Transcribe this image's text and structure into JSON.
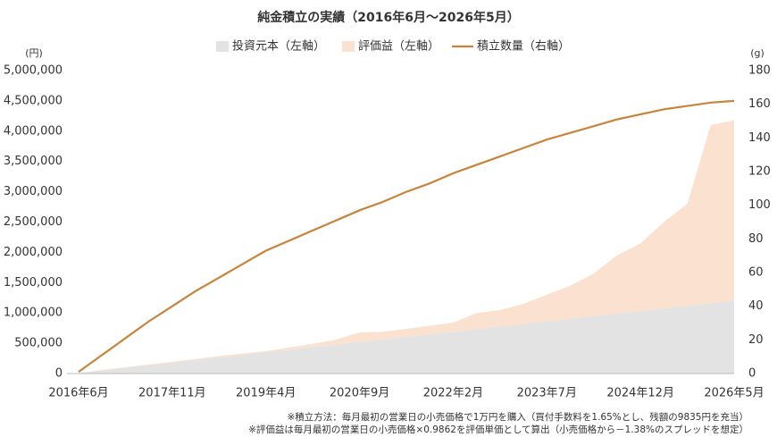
{
  "chart_data": {
    "type": "stacked_area_line",
    "title": "純金積立の実績（2016年6月～2026年5月）",
    "y_unit_label": "(円)",
    "y2_unit_label": "(g)",
    "categories": [
      "2016年6月",
      null,
      null,
      null,
      "2017年11月",
      null,
      null,
      null,
      "2019年4月",
      null,
      null,
      null,
      "2020年9月",
      null,
      null,
      null,
      "2022年2月",
      null,
      null,
      null,
      "2023年7月",
      null,
      null,
      null,
      "2024年12月",
      null,
      null,
      null,
      "2026年5月"
    ],
    "series": [
      {
        "name": "投資元本（左軸）",
        "type": "area",
        "color": "#e3e3e3",
        "values": [
          10000,
          52500,
          95000,
          137500,
          180000,
          222500,
          265000,
          307500,
          350000,
          392500,
          435000,
          477500,
          520000,
          562500,
          605000,
          647500,
          690000,
          732500,
          775000,
          817500,
          860000,
          902500,
          945000,
          987500,
          1030000,
          1072500,
          1115000,
          1157500,
          1200000
        ]
      },
      {
        "name": "評価益（左軸）",
        "type": "area",
        "color": "#fbe1cf",
        "values": [
          0,
          7500,
          10000,
          12500,
          15000,
          17500,
          25000,
          22500,
          20000,
          37500,
          55000,
          82500,
          160000,
          127500,
          135000,
          142500,
          150000,
          267500,
          272500,
          332500,
          440000,
          547500,
          705000,
          962500,
          1120000,
          1427500,
          1685000,
          2942500,
          2980000
        ]
      },
      {
        "name": "積立数量（右軸）",
        "type": "line",
        "axis": "y2",
        "color": "#c8843a",
        "values": [
          1,
          11,
          21,
          31,
          40,
          49,
          57,
          65,
          73,
          79,
          85,
          91,
          97,
          102,
          108,
          113,
          119,
          124,
          129,
          134,
          139,
          143,
          147,
          151,
          154,
          157,
          159,
          161,
          162
        ]
      }
    ],
    "ylim": [
      0,
      5000000
    ],
    "yticks": [
      0,
      {
        "value": 500000,
        "label": "500,000"
      },
      {
        "value": 1000000,
        "label": "1,000,000"
      },
      {
        "value": 1500000,
        "label": "1,500,000"
      },
      {
        "value": 2000000,
        "label": "2,000,000"
      },
      {
        "value": 2500000,
        "label": "2,500,000"
      },
      {
        "value": 3000000,
        "label": "3,000,000"
      },
      {
        "value": 3500000,
        "label": "3,500,000"
      },
      {
        "value": 4000000,
        "label": "4,000,000"
      },
      {
        "value": 4500000,
        "label": "4,500,000"
      },
      {
        "value": 5000000,
        "label": "5,000,000"
      }
    ],
    "y2lim": [
      0,
      180
    ],
    "y2ticks": [
      0,
      20,
      40,
      60,
      80,
      100,
      120,
      140,
      160,
      180
    ],
    "notes": [
      "※積立方法：毎月最初の営業日の小売価格で1万円を購入（買付手数料を1.65%とし、残額の9835円を充当）",
      "※評価益は毎月最初の営業日の小売価格×0.9862を評価単価として算出（小売価格から－1.38%のスプレッドを想定）"
    ]
  }
}
